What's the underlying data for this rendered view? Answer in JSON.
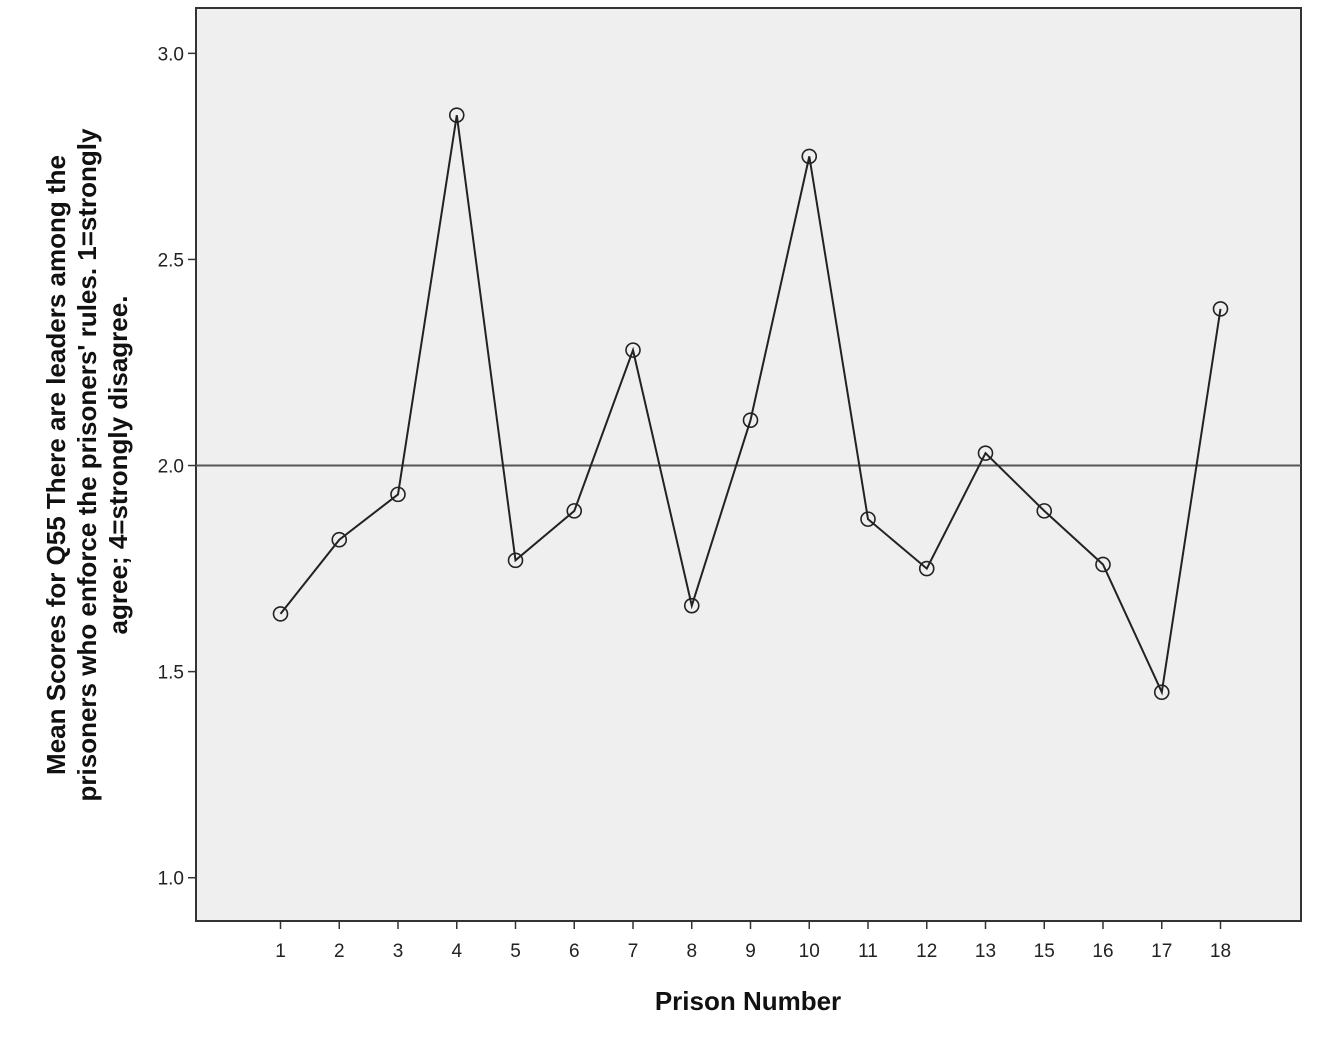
{
  "chart_data": {
    "type": "line",
    "title": "",
    "xlabel": "Prison Number",
    "ylabel": "Mean Scores for Q55 There are leaders among the prisoners who enforce the prisoners' rules. 1=strongly agree; 4=strongly disagree.",
    "ylabel_lines": [
      "Mean Scores for Q55 There are leaders among the",
      "prisoners who enforce the prisoners' rules. 1=strongly",
      "agree; 4=strongly disagree."
    ],
    "categories": [
      "1",
      "2",
      "3",
      "4",
      "5",
      "6",
      "7",
      "8",
      "9",
      "10",
      "11",
      "12",
      "13",
      "15",
      "16",
      "17",
      "18"
    ],
    "values": [
      1.64,
      1.82,
      1.93,
      2.85,
      1.77,
      1.89,
      2.28,
      1.66,
      2.11,
      2.75,
      1.87,
      1.75,
      2.03,
      1.89,
      1.76,
      1.45,
      2.38
    ],
    "yticks": [
      "1.0",
      "1.5",
      "2.0",
      "2.5",
      "3.0"
    ],
    "ylim": [
      0.895,
      3.11
    ],
    "reference_line": 2.0,
    "marker": "open-circle",
    "grid": false,
    "legend": "none",
    "colors": {
      "plot_background": "#efefef",
      "line": "#222222",
      "reference_line": "#555555"
    }
  }
}
